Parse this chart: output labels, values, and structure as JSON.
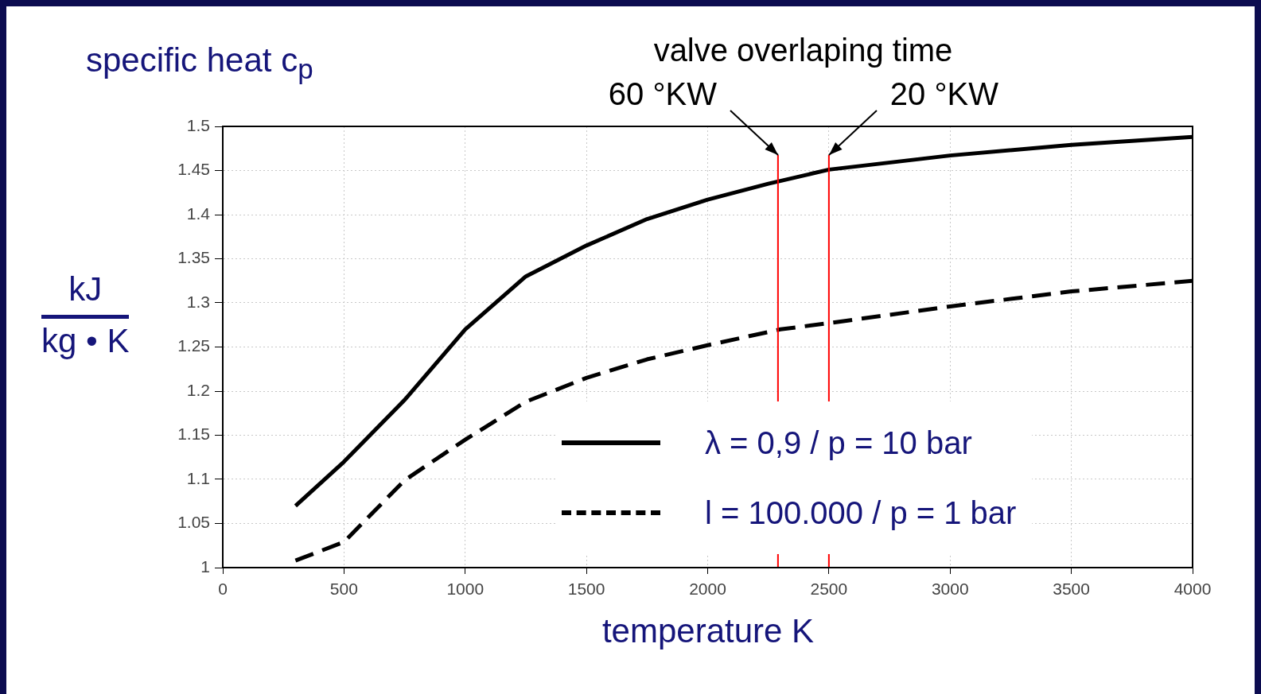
{
  "chart_data": {
    "type": "line",
    "title": "specific heat c$_{p}$",
    "xlabel": "temperature K",
    "ylabel": "kJ kg • K",
    "annotations": [
      "valve overlaping time"
    ],
    "series": [
      {
        "name": "λ = 0,9 / p = 10 bar",
        "color": "#000000",
        "line_style": "solid",
        "x": [
          300,
          500,
          750,
          1000,
          1250,
          1500,
          1750,
          2000,
          2250,
          2500,
          3000,
          3500,
          4000
        ],
        "values": [
          1.07,
          1.12,
          1.19,
          1.27,
          1.33,
          1.365,
          1.395,
          1.417,
          1.435,
          1.451,
          1.467,
          1.479,
          1.488
        ]
      },
      {
        "name": "l = 100.000 / p = 1 bar",
        "color": "#000000",
        "line_style": "dashed",
        "x": [
          300,
          500,
          750,
          1000,
          1250,
          1500,
          1750,
          2000,
          2300,
          2500,
          3000,
          3500,
          4000
        ],
        "values": [
          1.008,
          1.029,
          1.099,
          1.145,
          1.188,
          1.215,
          1.236,
          1.252,
          1.27,
          1.277,
          1.296,
          1.313,
          1.325
        ]
      }
    ],
    "ref_lines": [
      {
        "axis": "x",
        "value": 2290,
        "label": "60 °KW",
        "color": "#ff0000"
      },
      {
        "axis": "x",
        "value": 2500,
        "label": "20 °KW",
        "color": "#ff0000"
      }
    ],
    "xlim": [
      0,
      4000
    ],
    "xticks": [
      0,
      500,
      1000,
      1500,
      2000,
      2500,
      3000,
      3500,
      4000
    ],
    "ylim": [
      1,
      1.5
    ],
    "yticks": [
      1,
      1.05,
      1.1,
      1.15,
      1.2,
      1.25,
      1.3,
      1.35,
      1.4,
      1.45,
      1.5
    ],
    "grid": true,
    "legend": "bottom right",
    "marker": "none"
  }
}
